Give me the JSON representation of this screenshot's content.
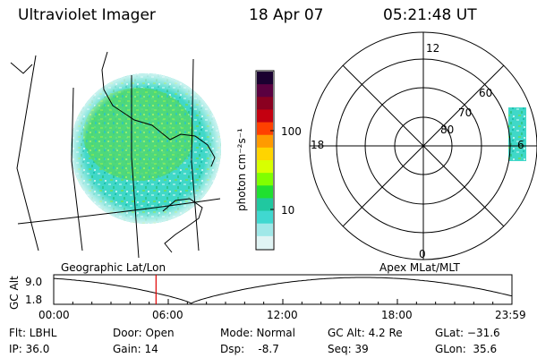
{
  "header": {
    "instrument": "Ultraviolet Imager",
    "date": "18 Apr 07",
    "time": "05:21:48 UT"
  },
  "colorbar": {
    "unit_label": "photon cm⁻²s⁻¹",
    "ticks": [
      "100",
      "10"
    ],
    "scale": "log",
    "colors": [
      "#1a0030",
      "#5a0040",
      "#8a0020",
      "#c40010",
      "#ff4000",
      "#ff9a00",
      "#ffd400",
      "#d8ff00",
      "#80ff00",
      "#20e030",
      "#20c8a0",
      "#40d8d0",
      "#a0e8e8",
      "#e0f4f4"
    ]
  },
  "polar_plot": {
    "lat_labels": [
      "80",
      "70",
      "60"
    ],
    "mlt_labels": [
      "12",
      "18",
      "6",
      "0"
    ]
  },
  "timeline": {
    "left_title": "Geographic Lat/Lon",
    "right_title": "Apex MLat/MLT",
    "axis_label": "GC Alt",
    "y_ticks": [
      "9.0",
      "1.8"
    ],
    "x_ticks": [
      "00:00",
      "06:00",
      "12:00",
      "18:00",
      "23:59"
    ],
    "current_time_hours": 5.36,
    "marker_color": "#e00000"
  },
  "info": {
    "filter": "Flt: LBHL",
    "ip": "IP: 36.0",
    "door": "Door: Open",
    "gain": "Gain: 14",
    "mode": "Mode: Normal",
    "dsp": "Dsp:    -8.7",
    "gc_alt": "GC Alt: 4.2 Re",
    "seq": "Seq: 39",
    "glat": "GLat: −31.6",
    "glon": "GLon:  35.6"
  }
}
